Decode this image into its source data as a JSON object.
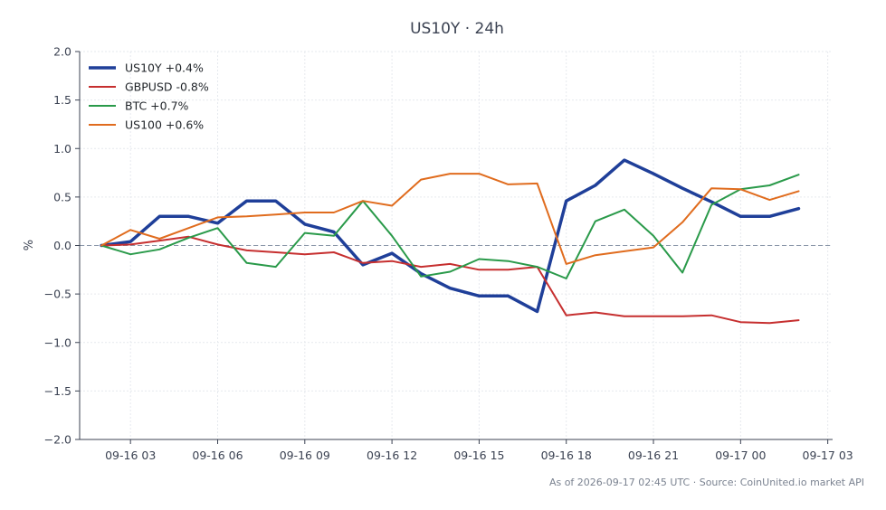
{
  "chart_data": {
    "type": "line",
    "title": "US10Y · 24h",
    "ylabel": "%",
    "xlabel": "",
    "ylim": [
      -2.0,
      2.0
    ],
    "yticks": [
      2.0,
      1.5,
      1.0,
      0.5,
      0.0,
      -0.5,
      -1.0,
      -1.5,
      -2.0
    ],
    "ytick_labels": [
      "2.0",
      "1.5",
      "1.0",
      "0.5",
      "0.0",
      "−0.5",
      "−1.0",
      "−1.5",
      "−2.0"
    ],
    "xlim": [
      "09-16 01:15",
      "09-17 03:10"
    ],
    "xticks": [
      "09-16 03:00",
      "09-16 06:00",
      "09-16 09:00",
      "09-16 12:00",
      "09-16 15:00",
      "09-16 18:00",
      "09-16 21:00",
      "09-17 00:00",
      "09-17 03:00"
    ],
    "xtick_labels": [
      "09-16 03",
      "09-16 06",
      "09-16 09",
      "09-16 12",
      "09-16 15",
      "09-16 18",
      "09-16 21",
      "09-17 00",
      "09-17 03"
    ],
    "x": [
      "09-16 02:00",
      "09-16 03:00",
      "09-16 04:00",
      "09-16 05:00",
      "09-16 06:00",
      "09-16 07:00",
      "09-16 08:00",
      "09-16 09:00",
      "09-16 10:00",
      "09-16 11:00",
      "09-16 12:00",
      "09-16 13:00",
      "09-16 14:00",
      "09-16 15:00",
      "09-16 16:00",
      "09-16 17:00",
      "09-16 18:00",
      "09-16 19:00",
      "09-16 20:00",
      "09-16 21:00",
      "09-16 22:00",
      "09-16 23:00",
      "09-17 00:00",
      "09-17 01:00",
      "09-17 02:00"
    ],
    "series": [
      {
        "name": "US10Y +0.4%",
        "color": "#1f3f99",
        "width": 3.5,
        "values": [
          0.0,
          0.04,
          0.3,
          0.3,
          0.23,
          0.46,
          0.46,
          0.22,
          0.14,
          -0.2,
          -0.08,
          -0.29,
          -0.44,
          -0.52,
          -0.52,
          -0.68,
          0.46,
          0.62,
          0.88,
          0.74,
          0.59,
          0.45,
          0.3,
          0.3,
          0.38
        ]
      },
      {
        "name": "GBPUSD -0.8%",
        "color": "#c62f2f",
        "width": 2,
        "values": [
          0.0,
          0.01,
          0.05,
          0.09,
          0.01,
          -0.05,
          -0.07,
          -0.09,
          -0.07,
          -0.18,
          -0.16,
          -0.22,
          -0.19,
          -0.25,
          -0.25,
          -0.22,
          -0.72,
          -0.69,
          -0.73,
          -0.73,
          -0.73,
          -0.72,
          -0.79,
          -0.8,
          -0.77
        ]
      },
      {
        "name": "BTC +0.7%",
        "color": "#2a9a4a",
        "width": 2,
        "values": [
          0.0,
          -0.09,
          -0.04,
          0.08,
          0.18,
          -0.18,
          -0.22,
          0.13,
          0.1,
          0.46,
          0.1,
          -0.32,
          -0.27,
          -0.14,
          -0.16,
          -0.22,
          -0.34,
          0.25,
          0.37,
          0.1,
          -0.28,
          0.42,
          0.58,
          0.62,
          0.73
        ]
      },
      {
        "name": "US100 +0.6%",
        "color": "#e06c1e",
        "width": 2,
        "values": [
          0.0,
          0.16,
          0.07,
          0.18,
          0.29,
          0.3,
          0.32,
          0.34,
          0.34,
          0.46,
          0.41,
          0.68,
          0.74,
          0.74,
          0.63,
          0.64,
          -0.19,
          -0.1,
          -0.06,
          -0.02,
          0.24,
          0.59,
          0.58,
          0.47,
          0.56
        ]
      }
    ],
    "grid": true,
    "legend_position": "top-left",
    "reference_line": 0.0
  },
  "footer": "As of 2026-09-17 02:45 UTC · Source: CoinUnited.io market API"
}
